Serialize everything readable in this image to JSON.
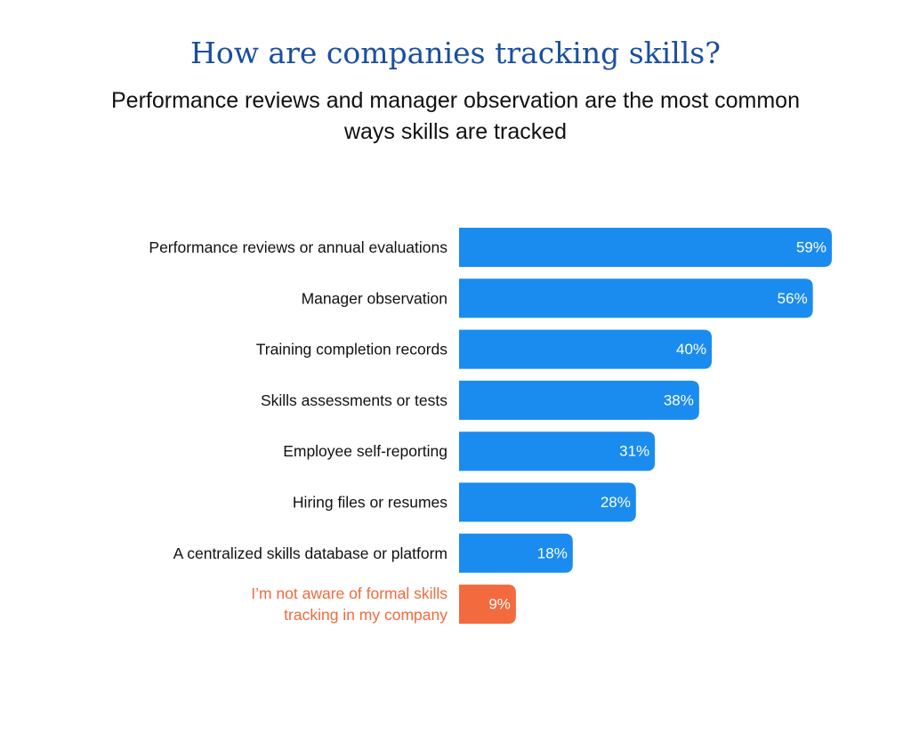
{
  "title": "How are companies tracking skills?",
  "subtitle": "Performance reviews and manager observation are the most common ways skills are tracked",
  "colors": {
    "title": "#1a4fa0",
    "bar": "#1a8cf0",
    "highlight": "#f26a3d",
    "label": "#111111",
    "value_text": "#ffffff"
  },
  "chart_data": {
    "type": "bar",
    "orientation": "horizontal",
    "categories": [
      [
        "Performance reviews or annual evaluations"
      ],
      [
        "Manager observation"
      ],
      [
        "Training completion records"
      ],
      [
        "Skills assessments or tests"
      ],
      [
        "Employee self-reporting"
      ],
      [
        "Hiring files or resumes"
      ],
      [
        "A centralized skills database or platform"
      ],
      [
        "I’m not aware of formal skills",
        "tracking in my company"
      ]
    ],
    "values": [
      59,
      56,
      40,
      38,
      31,
      28,
      18,
      9
    ],
    "value_labels": [
      "59%",
      "56%",
      "40%",
      "38%",
      "31%",
      "28%",
      "18%",
      "9%"
    ],
    "highlighted_index": 7,
    "xlim": [
      0,
      59
    ],
    "grid": false,
    "legend": "none"
  }
}
